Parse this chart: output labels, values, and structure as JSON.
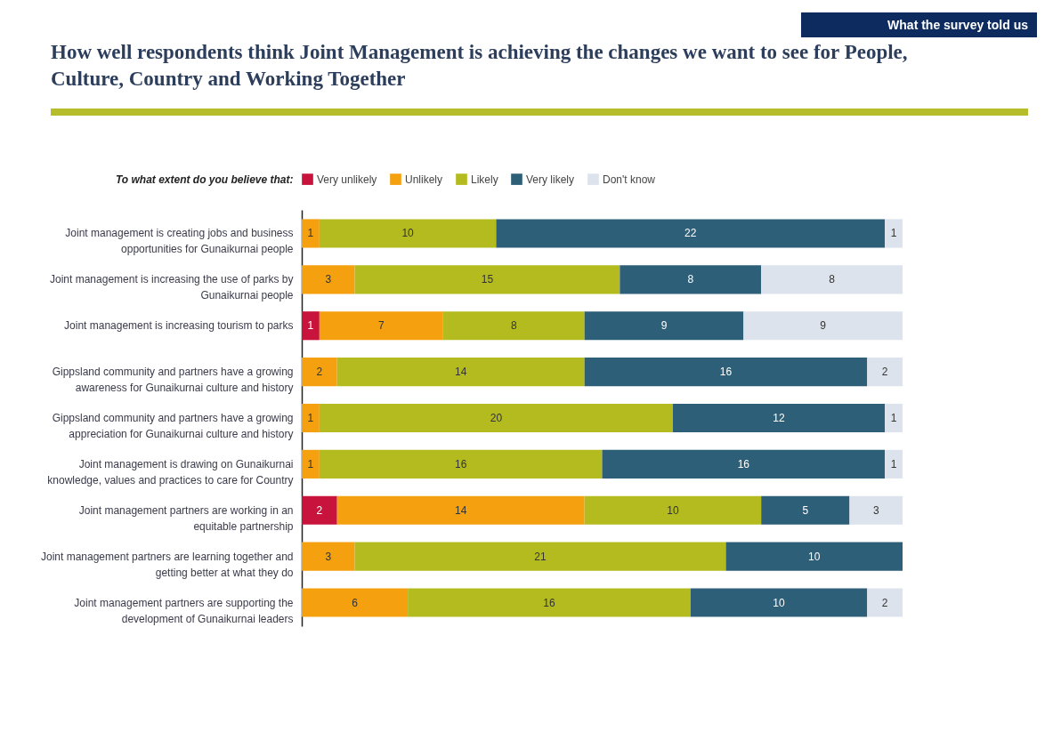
{
  "chart_data": {
    "type": "bar",
    "orientation": "horizontal",
    "stacked": true,
    "data_labels": true,
    "legend": "top",
    "grid": false,
    "title": "How well respondents think Joint Management is achieving the changes we want to see for People, Culture, Country and Working Together",
    "ylabel": "To what extent do you believe that:",
    "annotations": [
      "What the survey told us"
    ],
    "categories": [
      "Joint management is creating jobs and business opportunities for Gunaikurnai people",
      "Joint management is increasing the use of parks by Gunaikurnai people",
      "Joint management is increasing tourism to parks",
      "Gippsland community and partners have a growing awareness for Gunaikurnai culture and history",
      "Gippsland community and partners have a growing appreciation for Gunaikurnai culture and history",
      "Joint management is drawing on Gunaikurnai knowledge, values and practices to care for Country",
      "Joint management partners are working in an equitable partnership",
      "Joint management partners are learning together and getting better at what they do",
      "Joint management partners are supporting the development of Gunaikurnai leaders"
    ],
    "series": [
      {
        "name": "Very unlikely",
        "color": "#c8143c",
        "values": [
          null,
          null,
          1,
          null,
          null,
          null,
          2,
          null,
          null
        ]
      },
      {
        "name": "Unlikely",
        "color": "#f5a00f",
        "values": [
          1,
          3,
          7,
          2,
          1,
          1,
          14,
          3,
          6
        ]
      },
      {
        "name": "Likely",
        "color": "#b4bb1e",
        "values": [
          10,
          15,
          8,
          14,
          20,
          16,
          10,
          21,
          16
        ]
      },
      {
        "name": "Very likely",
        "color": "#2e5f78",
        "values": [
          22,
          8,
          9,
          16,
          12,
          16,
          5,
          10,
          10
        ]
      },
      {
        "name": "Don't know",
        "color": "#dde3ec",
        "values": [
          1,
          8,
          9,
          2,
          1,
          1,
          3,
          null,
          2
        ]
      }
    ]
  }
}
